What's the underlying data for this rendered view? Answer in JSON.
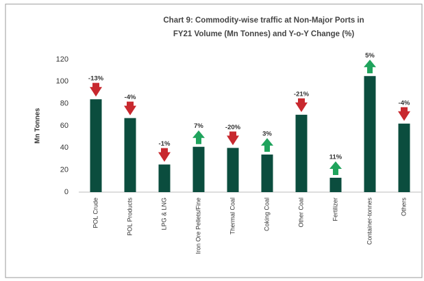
{
  "chart_data": {
    "type": "bar",
    "title": "Chart 9: Commodity-wise traffic at Non-Major Ports in",
    "subtitle": "FY21  Volume (Mn Tonnes) and Y-o-Y  Change (%)",
    "y_label": "Mn Tonnes",
    "categories": [
      "POL Crude",
      "POL Products",
      "LPG & LNG",
      "Iron Ore Pellets/Fine",
      "Thermal Coal",
      "Coking Coal",
      "Other Coal",
      "Fertilizer",
      "Container-tonnes",
      "Others"
    ],
    "values": [
      84,
      67,
      25,
      41,
      40,
      34,
      70,
      13,
      105,
      62
    ],
    "color": "#0b4d3e",
    "changes": [
      -13,
      -4,
      -1,
      7,
      -20,
      3,
      -21,
      11,
      5,
      -4
    ],
    "change_labels": [
      "-13%",
      "-4%",
      "-1%",
      "7%",
      "-20%",
      "3%",
      "-21%",
      "11%",
      "5%",
      "-4%"
    ],
    "up_color": "#1fa35c",
    "down_color": "#c8282e",
    "ylim": [
      0,
      120
    ],
    "yticks": [
      0,
      20,
      40,
      60,
      80,
      100,
      120
    ],
    "grid": false
  }
}
